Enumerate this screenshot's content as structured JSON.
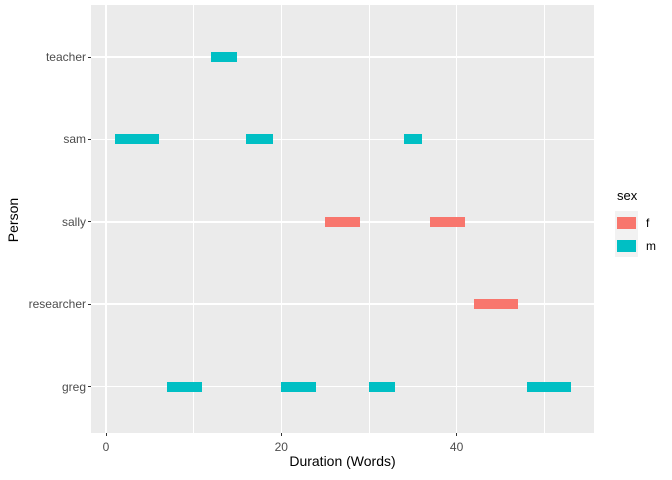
{
  "chart_data": {
    "type": "bar",
    "subtype": "horizontal-segment-gantt",
    "title": "",
    "xlabel": "Duration (Words)",
    "ylabel": "Person",
    "xlim": [
      -1.7,
      55.6
    ],
    "x_major_ticks": [
      0,
      20,
      40
    ],
    "x_minor_gridlines": [
      10,
      30,
      50
    ],
    "grid": true,
    "panel_background": "#EBEBEB",
    "grid_color": "#FFFFFF",
    "y_axis_order_top_to_bottom": [
      "teacher",
      "sam",
      "sally",
      "researcher",
      "greg"
    ],
    "segments": [
      {
        "person": "teacher",
        "start": 12,
        "end": 15,
        "sex": "m"
      },
      {
        "person": "sam",
        "start": 1,
        "end": 6,
        "sex": "m"
      },
      {
        "person": "sam",
        "start": 16,
        "end": 19,
        "sex": "m"
      },
      {
        "person": "sam",
        "start": 34,
        "end": 36,
        "sex": "m"
      },
      {
        "person": "sally",
        "start": 25,
        "end": 29,
        "sex": "f"
      },
      {
        "person": "sally",
        "start": 37,
        "end": 41,
        "sex": "f"
      },
      {
        "person": "researcher",
        "start": 42,
        "end": 47,
        "sex": "f"
      },
      {
        "person": "greg",
        "start": 7,
        "end": 11,
        "sex": "m"
      },
      {
        "person": "greg",
        "start": 20,
        "end": 24,
        "sex": "m"
      },
      {
        "person": "greg",
        "start": 30,
        "end": 33,
        "sex": "m"
      },
      {
        "person": "greg",
        "start": 48,
        "end": 53,
        "sex": "m"
      }
    ],
    "colors": {
      "f": "#F8766D",
      "m": "#00BFC4"
    },
    "legend": {
      "position": "right",
      "title": "sex",
      "entries": [
        {
          "label": "f",
          "color": "#F8766D"
        },
        {
          "label": "m",
          "color": "#00BFC4"
        }
      ]
    }
  }
}
